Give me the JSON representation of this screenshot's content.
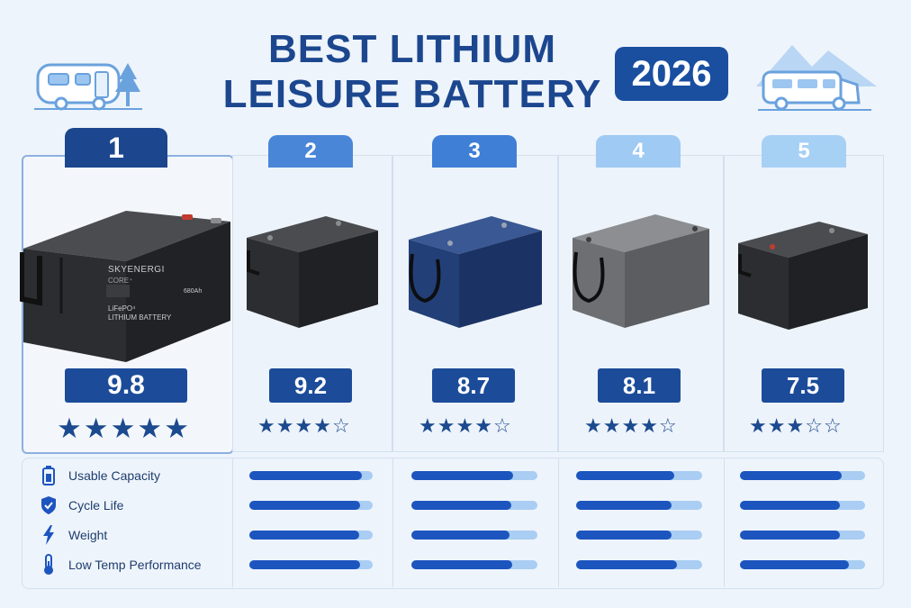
{
  "header": {
    "title_line1": "BEST LITHIUM",
    "title_line2": "LEISURE BATTERY",
    "year": "2026"
  },
  "colors": {
    "rank_tabs": [
      "#1c478f",
      "#4a86d8",
      "#3f7fd6",
      "#9fcaf3",
      "#a7d0f5"
    ],
    "battery_bodies": [
      "#2b2d30",
      "#2b2d30",
      "#26427a",
      "#6d6f72",
      "#2b2d30"
    ],
    "score_badge": "#1c4c99",
    "bar_fill": "#1d55bf",
    "bar_track": "#a9cdf3"
  },
  "products": [
    {
      "rank": "1",
      "score": "9.8",
      "stars": 5,
      "label": {
        "brand": "SKYENERGI",
        "sub": "CORE⁺",
        "line1": "LiFePO⁴",
        "line2": "LITHIUM BATTERY",
        "capacity": "680Ah"
      },
      "metrics": [
        0.95,
        0.95,
        0.95,
        0.95
      ]
    },
    {
      "rank": "2",
      "score": "9.2",
      "stars": 4,
      "metrics": [
        0.91,
        0.9,
        0.89,
        0.9
      ]
    },
    {
      "rank": "3",
      "score": "8.7",
      "stars": 4,
      "metrics": [
        0.81,
        0.79,
        0.78,
        0.8
      ]
    },
    {
      "rank": "4",
      "score": "8.1",
      "stars": 4,
      "metrics": [
        0.78,
        0.76,
        0.76,
        0.8
      ]
    },
    {
      "rank": "5",
      "score": "7.5",
      "stars": 3,
      "metrics": [
        0.81,
        0.8,
        0.8,
        0.87
      ]
    }
  ],
  "metrics": [
    {
      "label": "Usable Capacity",
      "icon": "battery-icon"
    },
    {
      "label": "Cycle Life",
      "icon": "shield-check-icon"
    },
    {
      "label": "Weight",
      "icon": "lightning-bolt-icon"
    },
    {
      "label": "Low Temp Performance",
      "icon": "thermometer-icon"
    }
  ]
}
